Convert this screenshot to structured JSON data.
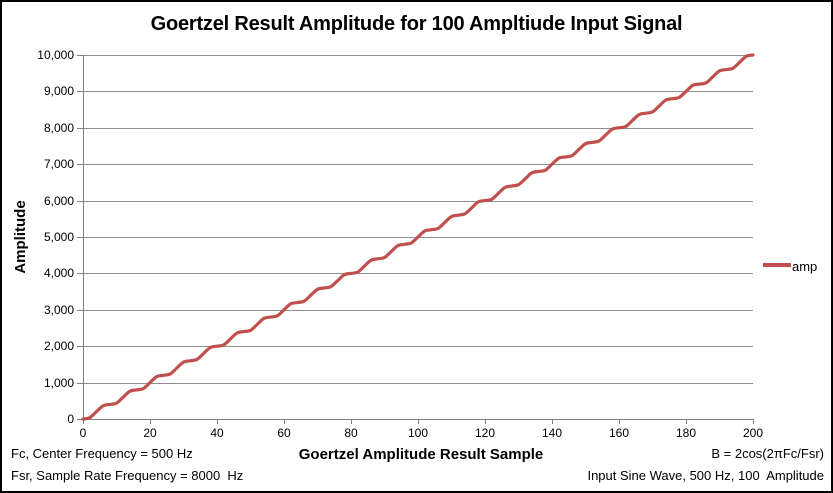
{
  "title": "Goertzel Result Amplitude for 100 Ampltiude Input Signal",
  "legend": {
    "label": "amp",
    "swatch_color": "#C0504D"
  },
  "annotations": {
    "bottom_left_line1": "Fc, Center Frequency = 500 Hz",
    "bottom_left_line2": "Fsr, Sample Rate Frequency = 8000  Hz",
    "bottom_right_line1": "B = 2cos(2πFc/Fsr)",
    "bottom_right_line2": "Input Sine Wave, 500 Hz, 100  Amplitude"
  },
  "colors": {
    "series": "#C0504D",
    "grid": "#909090",
    "axis": "#808080",
    "text": "#000000",
    "frame_border": "#000000",
    "background": "#FFFFFF"
  },
  "chart_data": {
    "type": "line",
    "title": "Goertzel Result Amplitude for 100 Ampltiude Input Signal",
    "xlabel": "Goertzel Amplitude Result Sample",
    "ylabel": "Amplitude",
    "xlim": [
      0,
      200
    ],
    "ylim": [
      0,
      10000
    ],
    "grid": "horizontal",
    "legend_position": "right",
    "x_ticks": [
      0,
      20,
      40,
      60,
      80,
      100,
      120,
      140,
      160,
      180,
      200
    ],
    "x_tick_labels": [
      "0",
      "20",
      "40",
      "60",
      "80",
      "100",
      "120",
      "140",
      "160",
      "180",
      "200"
    ],
    "y_ticks": [
      0,
      1000,
      2000,
      3000,
      4000,
      5000,
      6000,
      7000,
      8000,
      9000,
      10000
    ],
    "y_tick_labels": [
      "0",
      "1,000",
      "2,000",
      "3,000",
      "4,000",
      "5,000",
      "6,000",
      "7,000",
      "8,000",
      "9,000",
      "10,000"
    ],
    "series": [
      {
        "name": "amp",
        "color": "#C0504D",
        "x_start": 0,
        "x_step": 2,
        "values": [
          0,
          36.3,
          200,
          363.7,
          400,
          436.3,
          600,
          763.7,
          800,
          836.3,
          1000,
          1163.7,
          1200,
          1236.3,
          1400,
          1563.7,
          1600,
          1636.3,
          1800,
          1963.7,
          2000,
          2036.3,
          2200,
          2363.7,
          2400,
          2436.3,
          2600,
          2763.7,
          2800,
          2836.3,
          3000,
          3163.7,
          3200,
          3236.3,
          3400,
          3563.7,
          3600,
          3636.3,
          3800,
          3963.7,
          4000,
          4036.3,
          4200,
          4363.7,
          4400,
          4436.3,
          4600,
          4763.7,
          4800,
          4836.3,
          5000,
          5163.7,
          5200,
          5236.3,
          5400,
          5563.7,
          5600,
          5636.3,
          5800,
          5963.7,
          6000,
          6036.3,
          6200,
          6363.7,
          6400,
          6436.3,
          6600,
          6763.7,
          6800,
          6836.3,
          7000,
          7163.7,
          7200,
          7236.3,
          7400,
          7563.7,
          7600,
          7636.3,
          7800,
          7963.7,
          8000,
          8036.3,
          8200,
          8363.7,
          8400,
          8436.3,
          8600,
          8763.7,
          8800,
          8836.3,
          9000,
          9163.7,
          9200,
          9236.3,
          9400,
          9563.7,
          9600,
          9636.3,
          9800,
          9963.7,
          10000
        ]
      }
    ]
  }
}
